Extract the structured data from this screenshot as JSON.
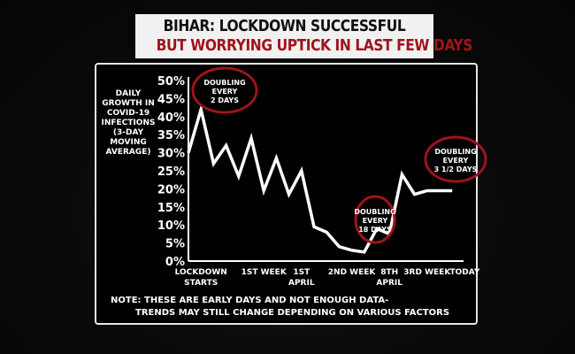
{
  "header": {
    "line1": "BIHAR: LOCKDOWN SUCCESSFUL",
    "line2": "BUT WORRYING UPTICK IN LAST FEW DAYS"
  },
  "colors": {
    "accent_red": "#a0131b",
    "line": "#ffffff",
    "background": "#000000"
  },
  "chart_data": {
    "type": "line",
    "ylabel": [
      "DAILY",
      "GROWTH IN",
      "COVID-19",
      "INFECTIONS",
      "(3-DAY",
      "MOVING",
      "AVERAGE)"
    ],
    "ylim": [
      0,
      50
    ],
    "yticks": [
      "0%",
      "5%",
      "10%",
      "15%",
      "20%",
      "25%",
      "30%",
      "35%",
      "40%",
      "45%",
      "50%"
    ],
    "x_labels": [
      {
        "lines": [
          "LOCKDOWN",
          "STARTS"
        ],
        "day": 1
      },
      {
        "lines": [
          "1ST WEEK"
        ],
        "day": 6
      },
      {
        "lines": [
          "1ST",
          "APRIL"
        ],
        "day": 9
      },
      {
        "lines": [
          "2ND WEEK"
        ],
        "day": 13
      },
      {
        "lines": [
          "8TH",
          "APRIL"
        ],
        "day": 16
      },
      {
        "lines": [
          "3RD WEEK"
        ],
        "day": 19
      },
      {
        "lines": [
          "TODAY"
        ],
        "day": 22
      }
    ],
    "series": [
      {
        "x": [
          0,
          1,
          2,
          3,
          4,
          5,
          6,
          7,
          8,
          9,
          10,
          11,
          12,
          13,
          14,
          15,
          16,
          17,
          18,
          19,
          20,
          21
        ],
        "values": [
          30,
          42,
          27,
          32,
          23.5,
          34,
          19.5,
          28.5,
          18.5,
          25,
          9.5,
          8,
          4,
          3,
          2.5,
          9,
          7.5,
          24,
          18.5,
          19.5,
          19.5,
          19.5
        ]
      }
    ],
    "annotations": [
      {
        "lines": [
          "DOUBLING",
          "EVERY",
          "2 DAYS"
        ]
      },
      {
        "lines": [
          "DOUBLING",
          "EVERY",
          "18 DAYS"
        ]
      },
      {
        "lines": [
          "DOUBLING",
          "EVERY",
          "3 1/2 DAYS"
        ]
      }
    ],
    "note": [
      "NOTE: THESE ARE EARLY DAYS AND NOT ENOUGH DATA-",
      "TRENDS MAY STILL CHANGE DEPENDING ON VARIOUS FACTORS"
    ]
  }
}
